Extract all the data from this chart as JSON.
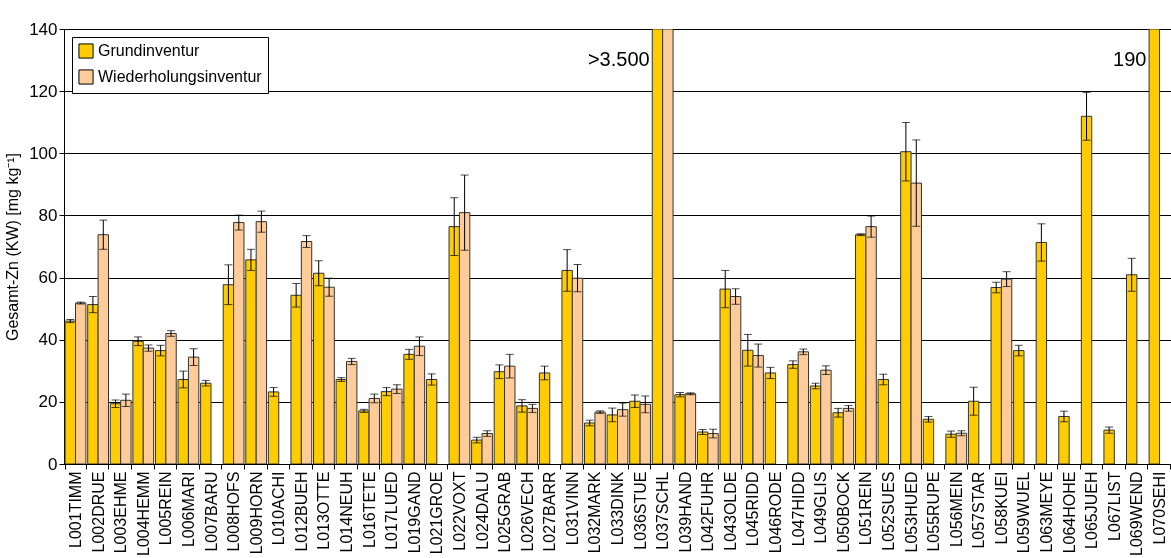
{
  "chart_data": {
    "type": "bar",
    "ylabel": "Gesamt-Zn (KW) [mg kg⁻¹]",
    "categories": [
      "L001TIMM",
      "L002DRUE",
      "L003EHME",
      "L004HEMM",
      "L005REIN",
      "L006MARI",
      "L007BARU",
      "L008HOFS",
      "L009HORN",
      "L010ACHI",
      "L012BUEH",
      "L013OTTE",
      "L014NEUH",
      "L016TETE",
      "L017LUED",
      "L019GAND",
      "L021GROE",
      "L022VOXT",
      "L024DALU",
      "L025GRAB",
      "L026VECH",
      "L027BARR",
      "L031VINN",
      "L032MARK",
      "L033DINK",
      "L036STUE",
      "L037SCHL",
      "L039HAND",
      "L042FUHR",
      "L043OLDE",
      "L045RIDD",
      "L046RODE",
      "L047HIDD",
      "L049GLIS",
      "L050BOCK",
      "L051REIN",
      "L052SUES",
      "L053HUED",
      "L055RUPE",
      "L056MEIN",
      "L057STAR",
      "L058KUEI",
      "L059WUEL",
      "L063MEYE",
      "L064HOHE",
      "L065JUEH",
      "L067LIST",
      "L069WEND",
      "L070SEHI"
    ],
    "series": [
      {
        "name": "Grundinventur",
        "color": "#ffcc00",
        "values": [
          46.0,
          51.3,
          19.4,
          39.5,
          36.5,
          27.2,
          26.0,
          57.7,
          65.7,
          23.2,
          54.3,
          61.4,
          27.2,
          17.1,
          23.3,
          35.3,
          27.2,
          76.4,
          7.7,
          29.7,
          18.7,
          29.3,
          62.3,
          13.2,
          15.8,
          20.2,
          140,
          22.3,
          10.3,
          56.3,
          36.6,
          29.3,
          32.0,
          25.1,
          16.5,
          73.8,
          27.2,
          100.5,
          14.4,
          9.6,
          20.2,
          56.8,
          36.5,
          71.3,
          15.3,
          111.9,
          10.9,
          60.9,
          140
        ],
        "errors": [
          0.5,
          2.6,
          1.2,
          1.4,
          1.7,
          2.7,
          0.9,
          6.4,
          3.4,
          1.4,
          3.8,
          4.0,
          0.6,
          0.5,
          1.3,
          1.6,
          1.8,
          9.3,
          0.9,
          2.2,
          2.0,
          2.2,
          6.7,
          0.9,
          2.2,
          2.0,
          null,
          0.7,
          0.8,
          6.0,
          5.1,
          1.8,
          1.2,
          0.9,
          1.4,
          0.3,
          1.7,
          9.4,
          0.9,
          1.0,
          4.5,
          1.7,
          1.7,
          6.0,
          1.7,
          7.7,
          1.0,
          5.3,
          null
        ]
      },
      {
        "name": "Wiederholungsinventur",
        "color": "#ffcc99",
        "values": [
          51.8,
          73.8,
          20.5,
          37.3,
          42.0,
          34.4,
          null,
          77.7,
          78.0,
          null,
          71.6,
          56.9,
          33.0,
          21.1,
          24.1,
          37.9,
          null,
          80.9,
          9.8,
          31.5,
          17.9,
          null,
          59.8,
          16.7,
          17.5,
          19.2,
          140,
          22.6,
          9.8,
          53.9,
          34.9,
          null,
          36.1,
          30.2,
          17.9,
          76.4,
          null,
          90.4,
          null,
          9.9,
          null,
          59.5,
          null,
          null,
          null,
          null,
          null,
          null,
          null
        ],
        "errors": [
          0.3,
          4.7,
          2.0,
          1.0,
          0.9,
          2.7,
          null,
          2.4,
          3.4,
          null,
          1.9,
          2.9,
          1.0,
          1.4,
          1.4,
          3.0,
          null,
          12.1,
          0.9,
          3.8,
          1.3,
          null,
          4.4,
          0.4,
          2.1,
          2.7,
          null,
          0.3,
          1.4,
          2.5,
          3.7,
          null,
          0.9,
          1.4,
          0.9,
          3.4,
          null,
          13.9,
          null,
          0.8,
          null,
          2.4,
          null,
          null,
          null,
          null,
          null,
          null,
          null
        ]
      }
    ],
    "ylim": [
      0,
      140
    ],
    "yticks": [
      0,
      20,
      40,
      60,
      80,
      100,
      120,
      140
    ],
    "grid": "y",
    "legend": "top left",
    "annotations": [
      {
        "text": ">3.500",
        "x": "L037SCHL",
        "y": 130
      },
      {
        "text": "190",
        "x": "L070SEHI",
        "y": 130
      }
    ]
  }
}
